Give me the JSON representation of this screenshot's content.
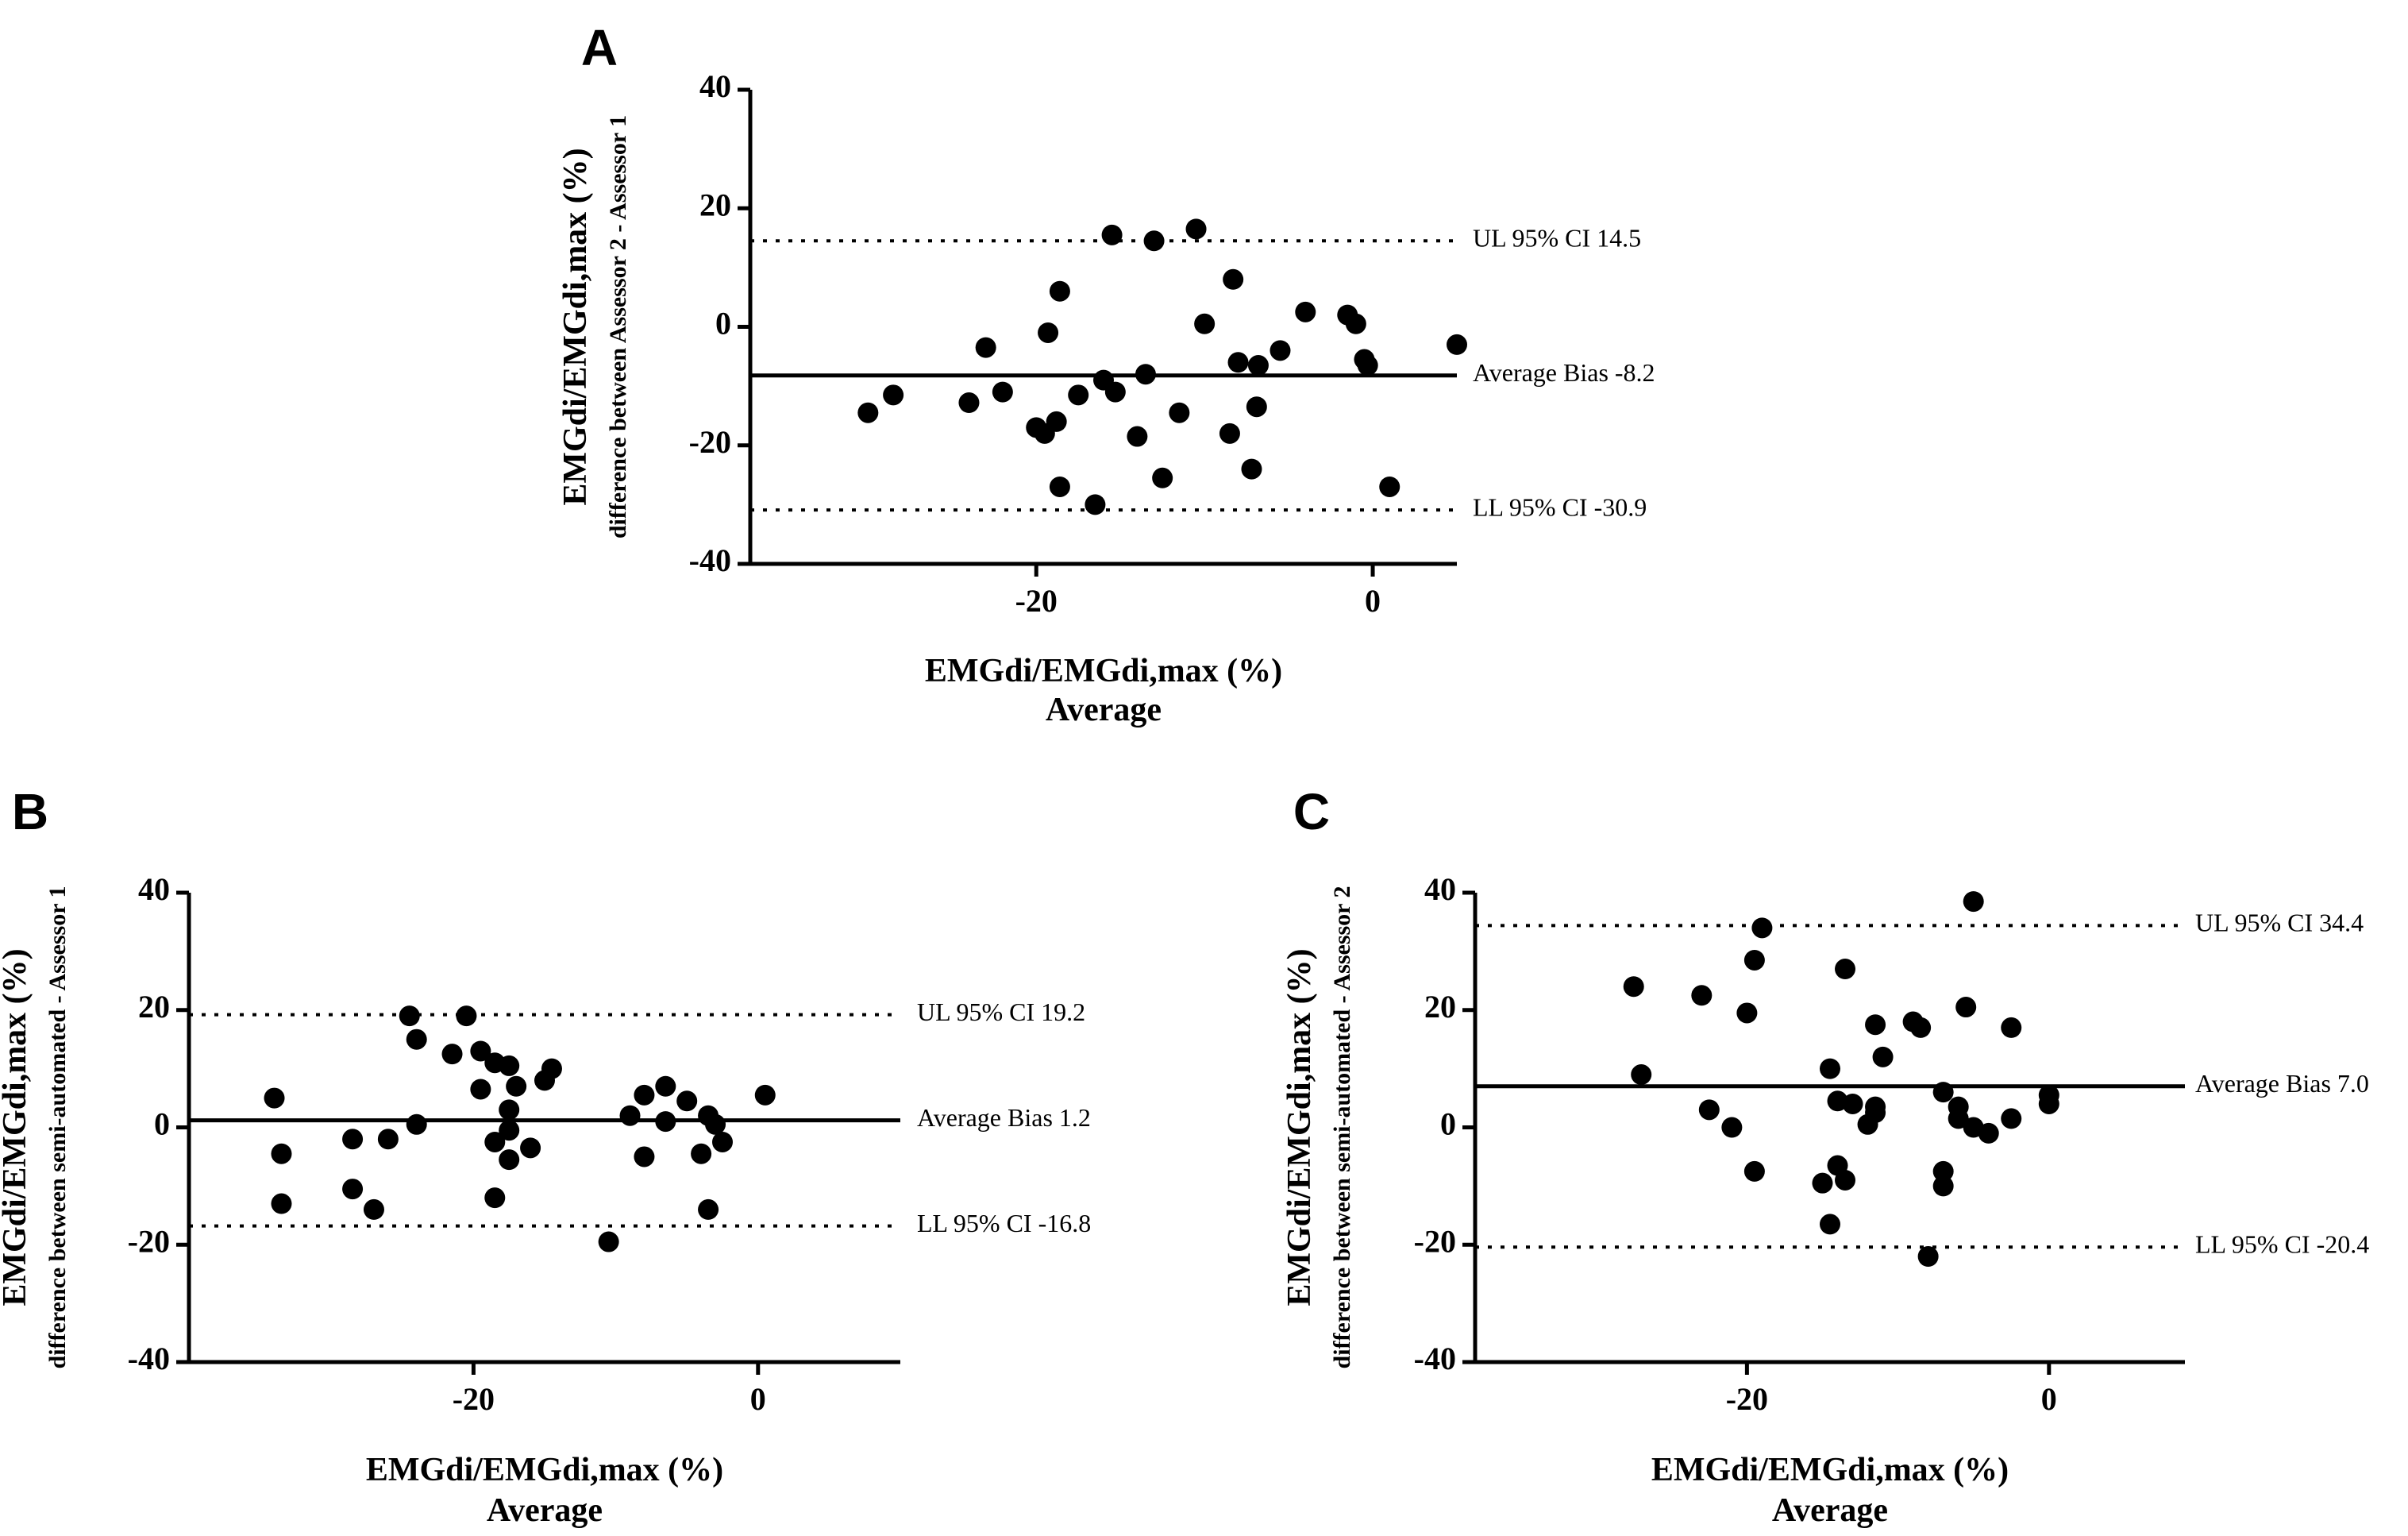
{
  "chart_data": [
    {
      "type": "scatter",
      "panel": "A",
      "xlabel": "EMGdi/EMGdi,max (%)",
      "xlabel2": "Average",
      "ylabel": "EMGdi/EMGdi,max (%)",
      "ylabel2": "difference between Assessor 2 - Assessor 1",
      "xlim": [
        -37,
        5
      ],
      "ylim": [
        -40,
        40
      ],
      "xticks": [
        -20,
        0
      ],
      "xtick_labels": [
        "-20",
        "0"
      ],
      "yticks": [
        40,
        20,
        0,
        -20,
        -40
      ],
      "ytick_labels": [
        "40",
        "20",
        "0",
        "-20",
        "-40"
      ],
      "reference_lines": [
        {
          "value": 14.5,
          "style": "dotted",
          "label": "UL 95% CI 14.5"
        },
        {
          "value": -8.2,
          "style": "solid",
          "label": "Average Bias  -8.2"
        },
        {
          "value": -30.9,
          "style": "dotted",
          "label": "LL 95% CI -30.9"
        }
      ],
      "points": [
        {
          "x": -30.0,
          "y": -14.5
        },
        {
          "x": -28.5,
          "y": -11.5
        },
        {
          "x": -24.0,
          "y": -12.8
        },
        {
          "x": -23.0,
          "y": -3.5
        },
        {
          "x": -22.0,
          "y": -11.0
        },
        {
          "x": -20.0,
          "y": -17.0
        },
        {
          "x": -19.5,
          "y": -18.0
        },
        {
          "x": -19.3,
          "y": -1.0
        },
        {
          "x": -18.6,
          "y": 6.0
        },
        {
          "x": -18.8,
          "y": -16.0
        },
        {
          "x": -18.6,
          "y": -27.0
        },
        {
          "x": -17.5,
          "y": -11.5
        },
        {
          "x": -16.5,
          "y": -30.0
        },
        {
          "x": -16.0,
          "y": -9.0
        },
        {
          "x": -15.5,
          "y": 15.5
        },
        {
          "x": -15.3,
          "y": -11.0
        },
        {
          "x": -14.0,
          "y": -18.5
        },
        {
          "x": -13.5,
          "y": -8.0
        },
        {
          "x": -13.0,
          "y": 14.5
        },
        {
          "x": -12.5,
          "y": -25.5
        },
        {
          "x": -11.5,
          "y": -14.5
        },
        {
          "x": -10.5,
          "y": 16.5
        },
        {
          "x": -10.0,
          "y": 0.5
        },
        {
          "x": -8.5,
          "y": -18.0
        },
        {
          "x": -8.3,
          "y": 8.0
        },
        {
          "x": -8.0,
          "y": -6.0
        },
        {
          "x": -7.2,
          "y": -24.0
        },
        {
          "x": -6.9,
          "y": -13.5
        },
        {
          "x": -6.8,
          "y": -6.5
        },
        {
          "x": -5.5,
          "y": -4.0
        },
        {
          "x": -4.0,
          "y": 2.5
        },
        {
          "x": -1.5,
          "y": 2.0
        },
        {
          "x": -1.0,
          "y": 0.5
        },
        {
          "x": -0.5,
          "y": -5.5
        },
        {
          "x": -0.3,
          "y": -6.5
        },
        {
          "x": 1.0,
          "y": -27.0
        },
        {
          "x": 5.0,
          "y": -3.0
        }
      ]
    },
    {
      "type": "scatter",
      "panel": "B",
      "xlabel": "EMGdi/EMGdi,max (%)",
      "xlabel2": "Average",
      "ylabel": "EMGdi/EMGdi,max (%)",
      "ylabel2": "difference between semi-automated - Assessor 1",
      "xlim": [
        -40,
        10
      ],
      "ylim": [
        -40,
        40
      ],
      "xticks": [
        -20,
        0
      ],
      "xtick_labels": [
        "-20",
        "0"
      ],
      "yticks": [
        40,
        20,
        0,
        -20,
        -40
      ],
      "ytick_labels": [
        "40",
        "20",
        "0",
        "-20",
        "-40"
      ],
      "reference_lines": [
        {
          "value": 19.2,
          "style": "dotted",
          "label": "UL 95% CI 19.2"
        },
        {
          "value": 1.2,
          "style": "solid",
          "label": "Average Bias  1.2"
        },
        {
          "value": -16.8,
          "style": "dotted",
          "label": "LL 95% CI -16.8"
        }
      ],
      "points": [
        {
          "x": -34.0,
          "y": 5.0
        },
        {
          "x": -33.5,
          "y": -4.5
        },
        {
          "x": -33.5,
          "y": -13.0
        },
        {
          "x": -28.5,
          "y": -2.0
        },
        {
          "x": -28.5,
          "y": -10.5
        },
        {
          "x": -27.0,
          "y": -14.0
        },
        {
          "x": -26.0,
          "y": -2.0
        },
        {
          "x": -24.5,
          "y": 19.0
        },
        {
          "x": -24.0,
          "y": 15.0
        },
        {
          "x": -24.0,
          "y": 0.5
        },
        {
          "x": -21.5,
          "y": 12.5
        },
        {
          "x": -20.5,
          "y": 19.0
        },
        {
          "x": -19.5,
          "y": 13.0
        },
        {
          "x": -19.5,
          "y": 6.5
        },
        {
          "x": -18.5,
          "y": 11.0
        },
        {
          "x": -18.5,
          "y": -2.5
        },
        {
          "x": -18.5,
          "y": -12.0
        },
        {
          "x": -17.5,
          "y": 10.5
        },
        {
          "x": -17.5,
          "y": 3.0
        },
        {
          "x": -17.5,
          "y": -0.5
        },
        {
          "x": -17.5,
          "y": -5.5
        },
        {
          "x": -17.0,
          "y": 7.0
        },
        {
          "x": -16.0,
          "y": -3.5
        },
        {
          "x": -15.0,
          "y": 8.0
        },
        {
          "x": -14.5,
          "y": 10.0
        },
        {
          "x": -10.5,
          "y": -19.5
        },
        {
          "x": -9.0,
          "y": 2.0
        },
        {
          "x": -8.0,
          "y": 5.5
        },
        {
          "x": -8.0,
          "y": -5.0
        },
        {
          "x": -6.5,
          "y": 1.0
        },
        {
          "x": -6.5,
          "y": 7.0
        },
        {
          "x": -5.0,
          "y": 4.5
        },
        {
          "x": -4.0,
          "y": -4.5
        },
        {
          "x": -3.5,
          "y": 2.0
        },
        {
          "x": -3.5,
          "y": -14.0
        },
        {
          "x": -3.0,
          "y": 0.5
        },
        {
          "x": -2.5,
          "y": -2.5
        },
        {
          "x": 0.5,
          "y": 5.5
        }
      ]
    },
    {
      "type": "scatter",
      "panel": "C",
      "xlabel": "EMGdi/EMGdi,max (%)",
      "xlabel2": "Average",
      "ylabel": "EMGdi/EMGdi,max (%)",
      "ylabel2": "difference between semi-automated - Assessor 2",
      "xlim": [
        -38,
        9
      ],
      "ylim": [
        -40,
        40
      ],
      "xticks": [
        -20,
        0
      ],
      "xtick_labels": [
        "-20",
        "0"
      ],
      "yticks": [
        40,
        20,
        0,
        -20,
        -40
      ],
      "ytick_labels": [
        "40",
        "20",
        "0",
        "-20",
        "-40"
      ],
      "reference_lines": [
        {
          "value": 34.4,
          "style": "dotted",
          "label": "UL 95% CI 34.4"
        },
        {
          "value": 7.0,
          "style": "solid",
          "label": "Average Bias  7.0"
        },
        {
          "value": -20.4,
          "style": "dotted",
          "label": "LL 95% CI -20.4"
        }
      ],
      "points": [
        {
          "x": -27.5,
          "y": 24.0
        },
        {
          "x": -27.0,
          "y": 9.0
        },
        {
          "x": -23.0,
          "y": 22.5
        },
        {
          "x": -22.5,
          "y": 3.0
        },
        {
          "x": -21.0,
          "y": 0.0
        },
        {
          "x": -20.0,
          "y": 19.5
        },
        {
          "x": -19.5,
          "y": 28.5
        },
        {
          "x": -19.5,
          "y": -7.5
        },
        {
          "x": -19.0,
          "y": 34.0
        },
        {
          "x": -15.0,
          "y": -9.5
        },
        {
          "x": -14.5,
          "y": 10.0
        },
        {
          "x": -14.5,
          "y": -16.5
        },
        {
          "x": -14.0,
          "y": 4.5
        },
        {
          "x": -14.0,
          "y": -6.5
        },
        {
          "x": -13.5,
          "y": 27.0
        },
        {
          "x": -13.5,
          "y": -9.0
        },
        {
          "x": -13.0,
          "y": 4.0
        },
        {
          "x": -12.0,
          "y": 0.5
        },
        {
          "x": -11.5,
          "y": 17.5
        },
        {
          "x": -11.5,
          "y": 3.5
        },
        {
          "x": -11.5,
          "y": 2.5
        },
        {
          "x": -11.0,
          "y": 12.0
        },
        {
          "x": -9.0,
          "y": 18.0
        },
        {
          "x": -8.5,
          "y": 17.0
        },
        {
          "x": -8.0,
          "y": -22.0
        },
        {
          "x": -7.0,
          "y": 6.0
        },
        {
          "x": -7.0,
          "y": -10.0
        },
        {
          "x": -7.0,
          "y": -7.5
        },
        {
          "x": -6.0,
          "y": 3.5
        },
        {
          "x": -6.0,
          "y": 1.5
        },
        {
          "x": -5.5,
          "y": 20.5
        },
        {
          "x": -5.0,
          "y": 38.5
        },
        {
          "x": -5.0,
          "y": 0.0
        },
        {
          "x": -4.0,
          "y": -1.0
        },
        {
          "x": -2.5,
          "y": 1.5
        },
        {
          "x": -2.5,
          "y": 17.0
        },
        {
          "x": 0.0,
          "y": 5.5
        },
        {
          "x": 0.0,
          "y": 4.0
        }
      ]
    }
  ]
}
